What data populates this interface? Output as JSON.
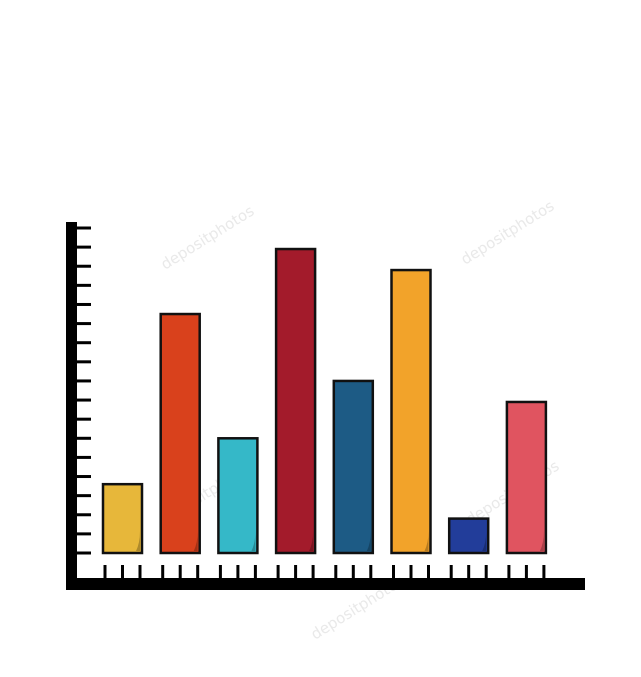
{
  "watermark": {
    "text": "depositphotos",
    "color": "#dcdcdc"
  },
  "chart_data": {
    "type": "bar",
    "title": "",
    "xlabel": "",
    "ylabel": "",
    "ylim": [
      0,
      17
    ],
    "grid": false,
    "legend": "none",
    "categories": [
      "",
      "",
      "",
      "",
      "",
      "",
      "",
      ""
    ],
    "values": [
      3.6,
      12.5,
      6.0,
      15.9,
      9.0,
      14.8,
      1.8,
      7.9
    ],
    "colors": [
      "#E7B73A",
      "#D9411C",
      "#35B8C8",
      "#A31B2B",
      "#1D5B85",
      "#F2A32A",
      "#223D9A",
      "#E05460"
    ],
    "outline_color": "#111111",
    "axis_color": "#000000",
    "y_tick_count": 17,
    "x_ticks_per_bar": 3
  }
}
